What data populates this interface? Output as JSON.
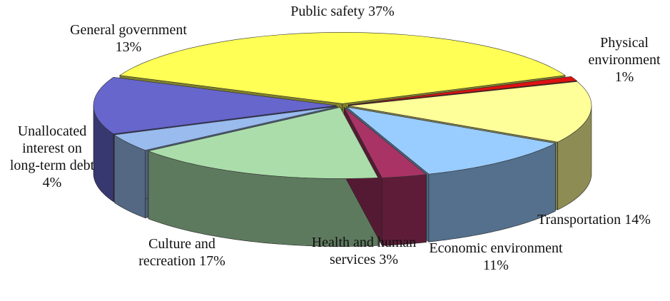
{
  "chart_data": {
    "type": "pie",
    "categories": [
      "Public safety",
      "Physical environment",
      "Transportation",
      "Economic environment",
      "Health and human services",
      "Culture and recreation",
      "Unallocated interest on long-term debt",
      "General government"
    ],
    "values": [
      37,
      1,
      14,
      11,
      3,
      17,
      4,
      13
    ],
    "value_labels": [
      "37%",
      "1%",
      "14%",
      "11%",
      "3%",
      "17%",
      "4%",
      "13%"
    ],
    "colors": [
      "#ffff55",
      "#dd1111",
      "#ffff99",
      "#99ccff",
      "#aa3366",
      "#aaddaa",
      "#99bbee",
      "#6666cc"
    ]
  }
}
